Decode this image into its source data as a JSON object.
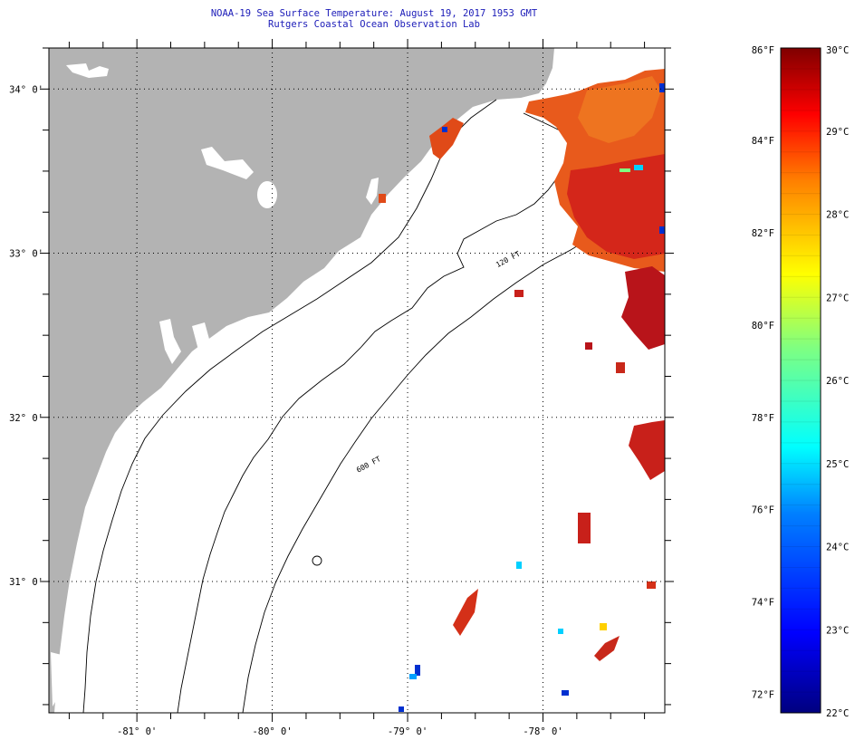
{
  "header": {
    "title": "NOAA-19 Sea Surface Temperature:  August 19, 2017 1953 GMT",
    "subtitle": "Rutgers Coastal Ocean Observation Lab"
  },
  "map": {
    "lon_range": [
      -81.65,
      -77.1
    ],
    "lat_range": [
      30.2,
      34.25
    ],
    "lon_ticks": [
      {
        "value": -81,
        "label": "-81° 0'"
      },
      {
        "value": -80,
        "label": "-80° 0'"
      },
      {
        "value": -79,
        "label": "-79° 0'"
      },
      {
        "value": -78,
        "label": "-78° 0'"
      }
    ],
    "lat_ticks": [
      {
        "value": 34,
        "label": "34° 0'"
      },
      {
        "value": 33,
        "label": "33° 0'"
      },
      {
        "value": 32,
        "label": "32° 0'"
      },
      {
        "value": 31,
        "label": "31° 0'"
      }
    ],
    "contour_labels": [
      {
        "text": "120 FT",
        "lon": -78.25,
        "lat": 32.95
      },
      {
        "text": "600 FT",
        "lon": -79.28,
        "lat": 31.7
      }
    ],
    "colors": {
      "land": "#b3b3b3",
      "ocean": "#ffffff",
      "warm_water": "#e84a14",
      "hot_water": "#c01a10",
      "coastline": "#000000"
    }
  },
  "colorbar": {
    "min_celsius": 22,
    "max_celsius": 30,
    "celsius_labels": [
      "30°C",
      "29°C",
      "28°C",
      "27°C",
      "26°C",
      "25°C",
      "24°C",
      "23°C",
      "22°C"
    ],
    "fahrenheit_labels": [
      "86°F",
      "84°F",
      "82°F",
      "80°F",
      "78°F",
      "76°F",
      "74°F",
      "72°F"
    ],
    "colors": [
      "#00007f",
      "#0000ff",
      "#0080ff",
      "#00ffff",
      "#80ff80",
      "#ffff00",
      "#ff8000",
      "#ff0000",
      "#7f0000"
    ]
  }
}
